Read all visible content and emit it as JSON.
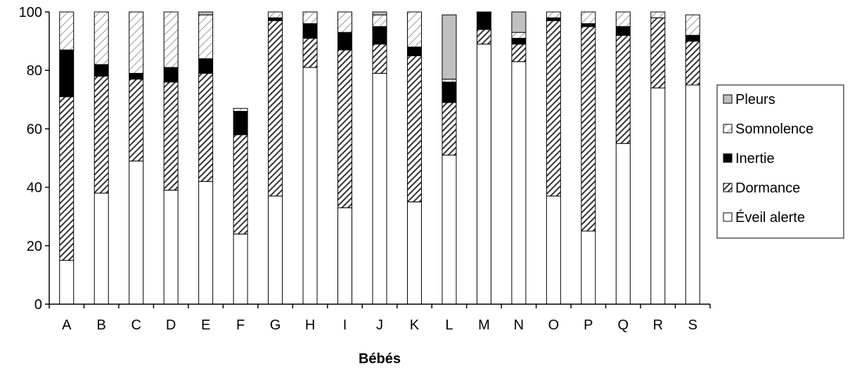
{
  "chart_data": {
    "type": "bar",
    "stacked": true,
    "title": "",
    "xlabel": "Bébés",
    "ylabel": "",
    "ylim": [
      0,
      100
    ],
    "yticks": [
      0,
      20,
      40,
      60,
      80,
      100
    ],
    "grid": false,
    "legend_position": "right",
    "categories": [
      "A",
      "B",
      "C",
      "D",
      "E",
      "F",
      "G",
      "H",
      "I",
      "J",
      "K",
      "L",
      "M",
      "N",
      "O",
      "P",
      "Q",
      "R",
      "S"
    ],
    "series": [
      {
        "name": "Éveil alerte",
        "pattern": "plain",
        "color": "#ffffff",
        "values": [
          15,
          38,
          49,
          39,
          42,
          24,
          37,
          81,
          33,
          79,
          35,
          51,
          89,
          83,
          37,
          25,
          55,
          74,
          75
        ]
      },
      {
        "name": "Dormance",
        "pattern": "hatch-dense",
        "color": "#333333",
        "values": [
          56,
          40,
          28,
          37,
          37,
          34,
          60,
          10,
          54,
          10,
          50,
          18,
          5,
          6,
          60,
          70,
          37,
          24,
          15
        ]
      },
      {
        "name": "Inertie",
        "pattern": "solid",
        "color": "#000000",
        "values": [
          16,
          4,
          2,
          5,
          5,
          8,
          1,
          5,
          6,
          6,
          3,
          7,
          6,
          2,
          1,
          1,
          3,
          0,
          2
        ]
      },
      {
        "name": "Somnolence",
        "pattern": "hatch-light",
        "color": "#9a9a9a",
        "values": [
          13,
          18,
          21,
          19,
          15,
          1,
          2,
          4,
          7,
          4,
          12,
          1,
          0,
          2,
          2,
          4,
          5,
          2,
          7
        ]
      },
      {
        "name": "Pleurs",
        "pattern": "solid",
        "color": "#c0c0c0",
        "values": [
          0,
          0,
          0,
          0,
          1,
          0,
          0,
          0,
          0,
          1,
          0,
          22,
          0,
          7,
          0,
          0,
          0,
          0,
          0
        ]
      }
    ]
  }
}
